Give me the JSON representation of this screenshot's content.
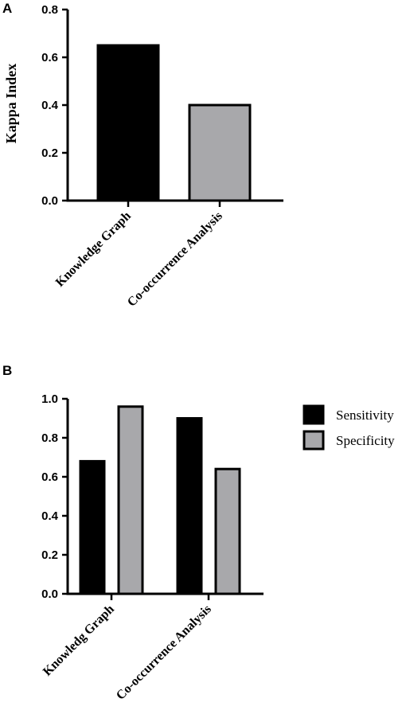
{
  "chart_data": [
    {
      "panel": "A",
      "type": "bar",
      "categories": [
        "Knowledge Graph",
        "Co-occurrence Analysis"
      ],
      "values": [
        0.65,
        0.4
      ],
      "colors": [
        "#000000",
        "#a8a8ab"
      ],
      "ylabel": "Kappa Index",
      "ylim": [
        0,
        0.8
      ],
      "yticks": [
        "0.0",
        "0.2",
        "0.4",
        "0.6",
        "0.8"
      ],
      "grid": false
    },
    {
      "panel": "B",
      "type": "bar",
      "categories": [
        "Knowledg Graph",
        "Co-occurrence Analysis"
      ],
      "series": [
        {
          "name": "Sensitivity",
          "values": [
            0.68,
            0.9
          ],
          "color": "#000000"
        },
        {
          "name": "Specificity",
          "values": [
            0.96,
            0.64
          ],
          "color": "#a8a8ab"
        }
      ],
      "ylim": [
        0,
        1.0
      ],
      "yticks": [
        "0.0",
        "0.2",
        "0.4",
        "0.6",
        "0.8",
        "1.0"
      ],
      "legend": "right",
      "grid": false
    }
  ]
}
